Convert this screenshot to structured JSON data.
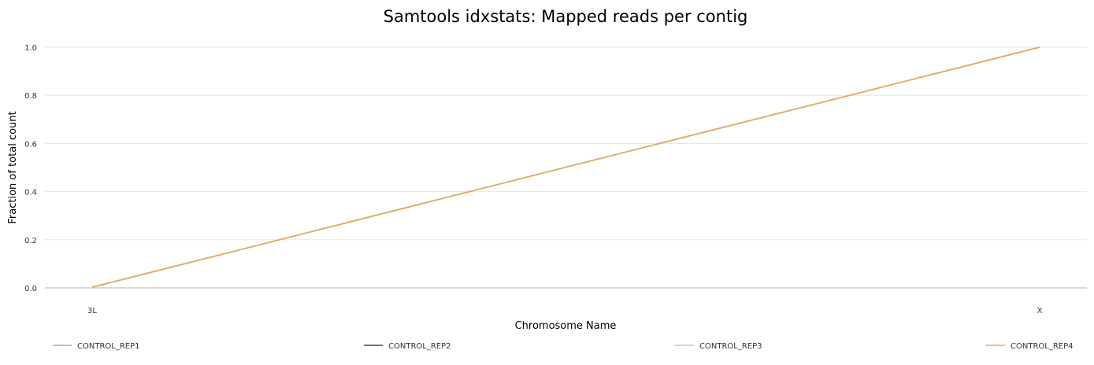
{
  "chart_data": {
    "type": "line",
    "title": "Samtools idxstats: Mapped reads per contig",
    "xlabel": "Chromosome Name",
    "ylabel": "Fraction of total count",
    "categories": [
      "3L",
      "X"
    ],
    "ylim": [
      0,
      1
    ],
    "yticks": [
      "0.0",
      "0.2",
      "0.4",
      "0.6",
      "0.8",
      "1.0"
    ],
    "grid": true,
    "legend_position": "bottom",
    "series": [
      {
        "name": "CONTROL_REP1",
        "color": "#7cb5ec",
        "values": [
          0.003,
          1.0
        ]
      },
      {
        "name": "CONTROL_REP2",
        "color": "#434348",
        "values": [
          0.003,
          1.0
        ]
      },
      {
        "name": "CONTROL_REP3",
        "color": "#90ed7d",
        "values": [
          0.003,
          1.0
        ]
      },
      {
        "name": "CONTROL_REP4",
        "color": "#f7a35c",
        "values": [
          0.003,
          1.0
        ]
      }
    ]
  }
}
